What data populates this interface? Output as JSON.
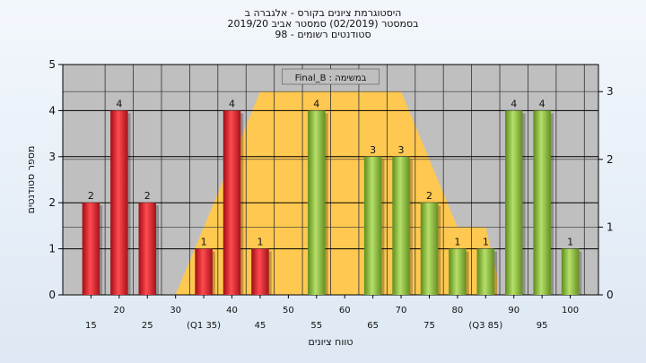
{
  "titles": {
    "line1": "היסטוגרמת ציונים בקורס - אלגברה ב",
    "line2": "בסמסטר  (02/2019)  סמסטר אביב 2019/20",
    "line3": "סטודנטים רשומים - 98"
  },
  "colors": {
    "plot_bg": "#bfbfbf",
    "band": "#ffc850",
    "bar_fail": "#e0202a",
    "bar_pass": "#8cc43c",
    "grid": "#000000"
  },
  "chart_data": {
    "type": "bar",
    "legend_label": "במשימה : Final_B",
    "xlabel": "טווח ציונים",
    "ylabel": "מספר סטודנטים",
    "ylim": [
      0,
      5
    ],
    "yticks": [
      0,
      1,
      2,
      3,
      4,
      5
    ],
    "y2lim": [
      0,
      3.4
    ],
    "y2ticks": [
      0,
      1,
      2,
      3
    ],
    "categories": [
      "15",
      "20",
      "25",
      "30",
      "35",
      "40",
      "45",
      "50",
      "55",
      "60",
      "65",
      "70",
      "75",
      "80",
      "85",
      "90",
      "95",
      "100"
    ],
    "tick_labels_row1": [
      "",
      "20",
      "",
      "30",
      "",
      "40",
      "",
      "50",
      "",
      "60",
      "",
      "70",
      "",
      "80",
      "",
      "90",
      "",
      "100"
    ],
    "tick_labels_row2": [
      "15",
      "",
      "25",
      "",
      "(Q1 35)",
      "",
      "45",
      "",
      "55",
      "",
      "65",
      "",
      "75",
      "",
      "(Q3 85)",
      "",
      "95",
      ""
    ],
    "values": [
      2,
      4,
      2,
      0,
      1,
      4,
      1,
      0,
      4,
      0,
      3,
      3,
      2,
      1,
      1,
      4,
      4,
      1
    ],
    "bar_status": [
      "fail",
      "fail",
      "fail",
      "fail",
      "fail",
      "fail",
      "fail",
      "fail",
      "pass",
      "pass",
      "pass",
      "pass",
      "pass",
      "pass",
      "pass",
      "pass",
      "pass",
      "pass"
    ],
    "band_secondary": [
      {
        "x": 30,
        "y": 0
      },
      {
        "x": 45,
        "y": 3
      },
      {
        "x": 70,
        "y": 3
      },
      {
        "x": 80,
        "y": 1
      },
      {
        "x": 85,
        "y": 1
      },
      {
        "x": 87,
        "y": 0.3
      }
    ]
  }
}
